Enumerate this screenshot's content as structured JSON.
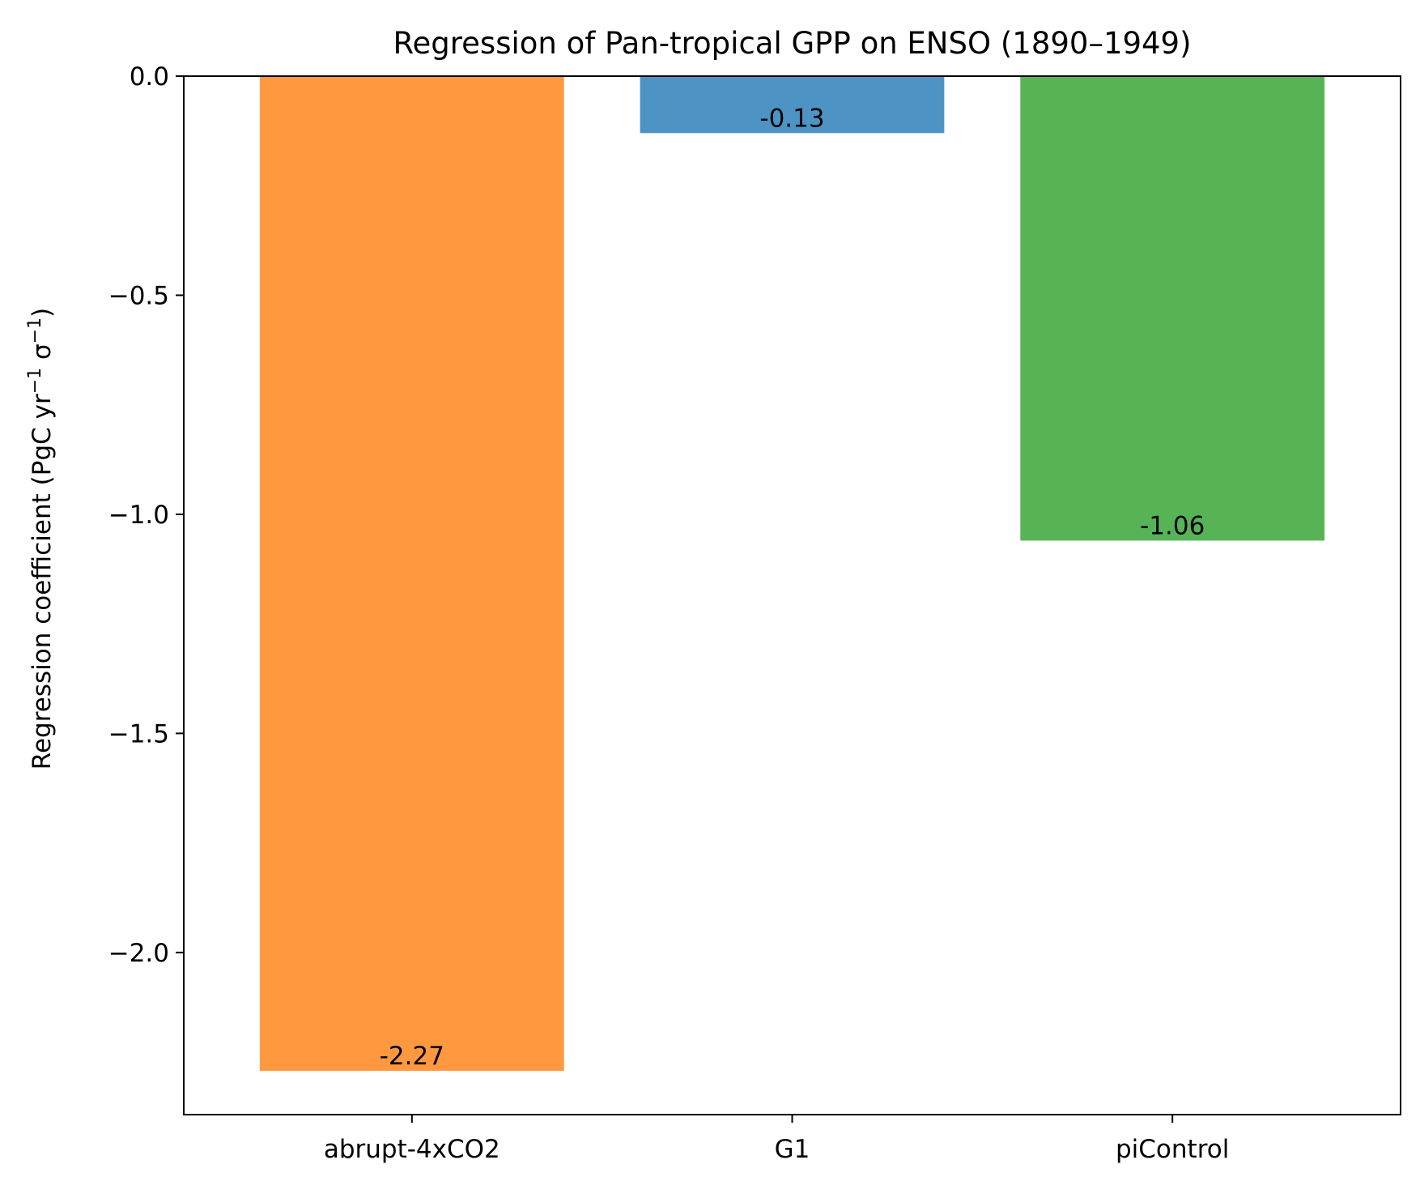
{
  "chart_data": {
    "type": "bar",
    "title": "Regression of Pan-tropical GPP on ENSO (1890–1949)",
    "xlabel": "",
    "ylabel": {
      "prefix": "Regression coefficient (PgC yr",
      "sup1": "−1",
      "middle": " σ",
      "sup2": "−1",
      "suffix": ")"
    },
    "categories": [
      "abrupt-4xCO2",
      "G1",
      "piControl"
    ],
    "values": [
      -2.27,
      -0.13,
      -1.06
    ],
    "value_labels": [
      "-2.27",
      "-0.13",
      "-1.06"
    ],
    "colors": [
      "#ff983f",
      "#4d94c5",
      "#57b456"
    ],
    "ylim": [
      -2.37,
      0.0
    ],
    "yticks": [
      0.0,
      -0.5,
      -1.0,
      -1.5,
      -2.0
    ],
    "ytick_labels": [
      "0.0",
      "−0.5",
      "−1.0",
      "−1.5",
      "−2.0"
    ],
    "grid": false,
    "legend": "none"
  }
}
